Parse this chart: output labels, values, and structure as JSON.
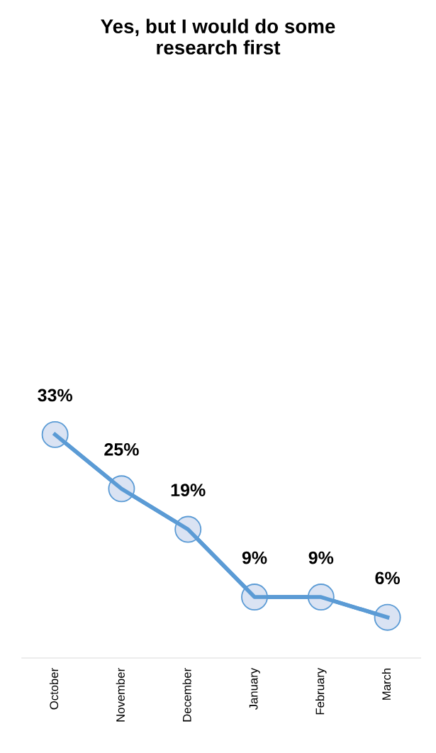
{
  "chart_data": {
    "type": "line",
    "title": "Yes, but I would do some\nresearch first",
    "categories": [
      "October",
      "November",
      "December",
      "January",
      "February",
      "March"
    ],
    "values": [
      33,
      25,
      19,
      9,
      9,
      6
    ],
    "value_labels": [
      "33%",
      "25%",
      "19%",
      "9%",
      "9%",
      "6%"
    ],
    "color": "#5b9bd5",
    "marker": "circle",
    "line_style": "solid",
    "tick_labels": "x",
    "grid": false
  }
}
